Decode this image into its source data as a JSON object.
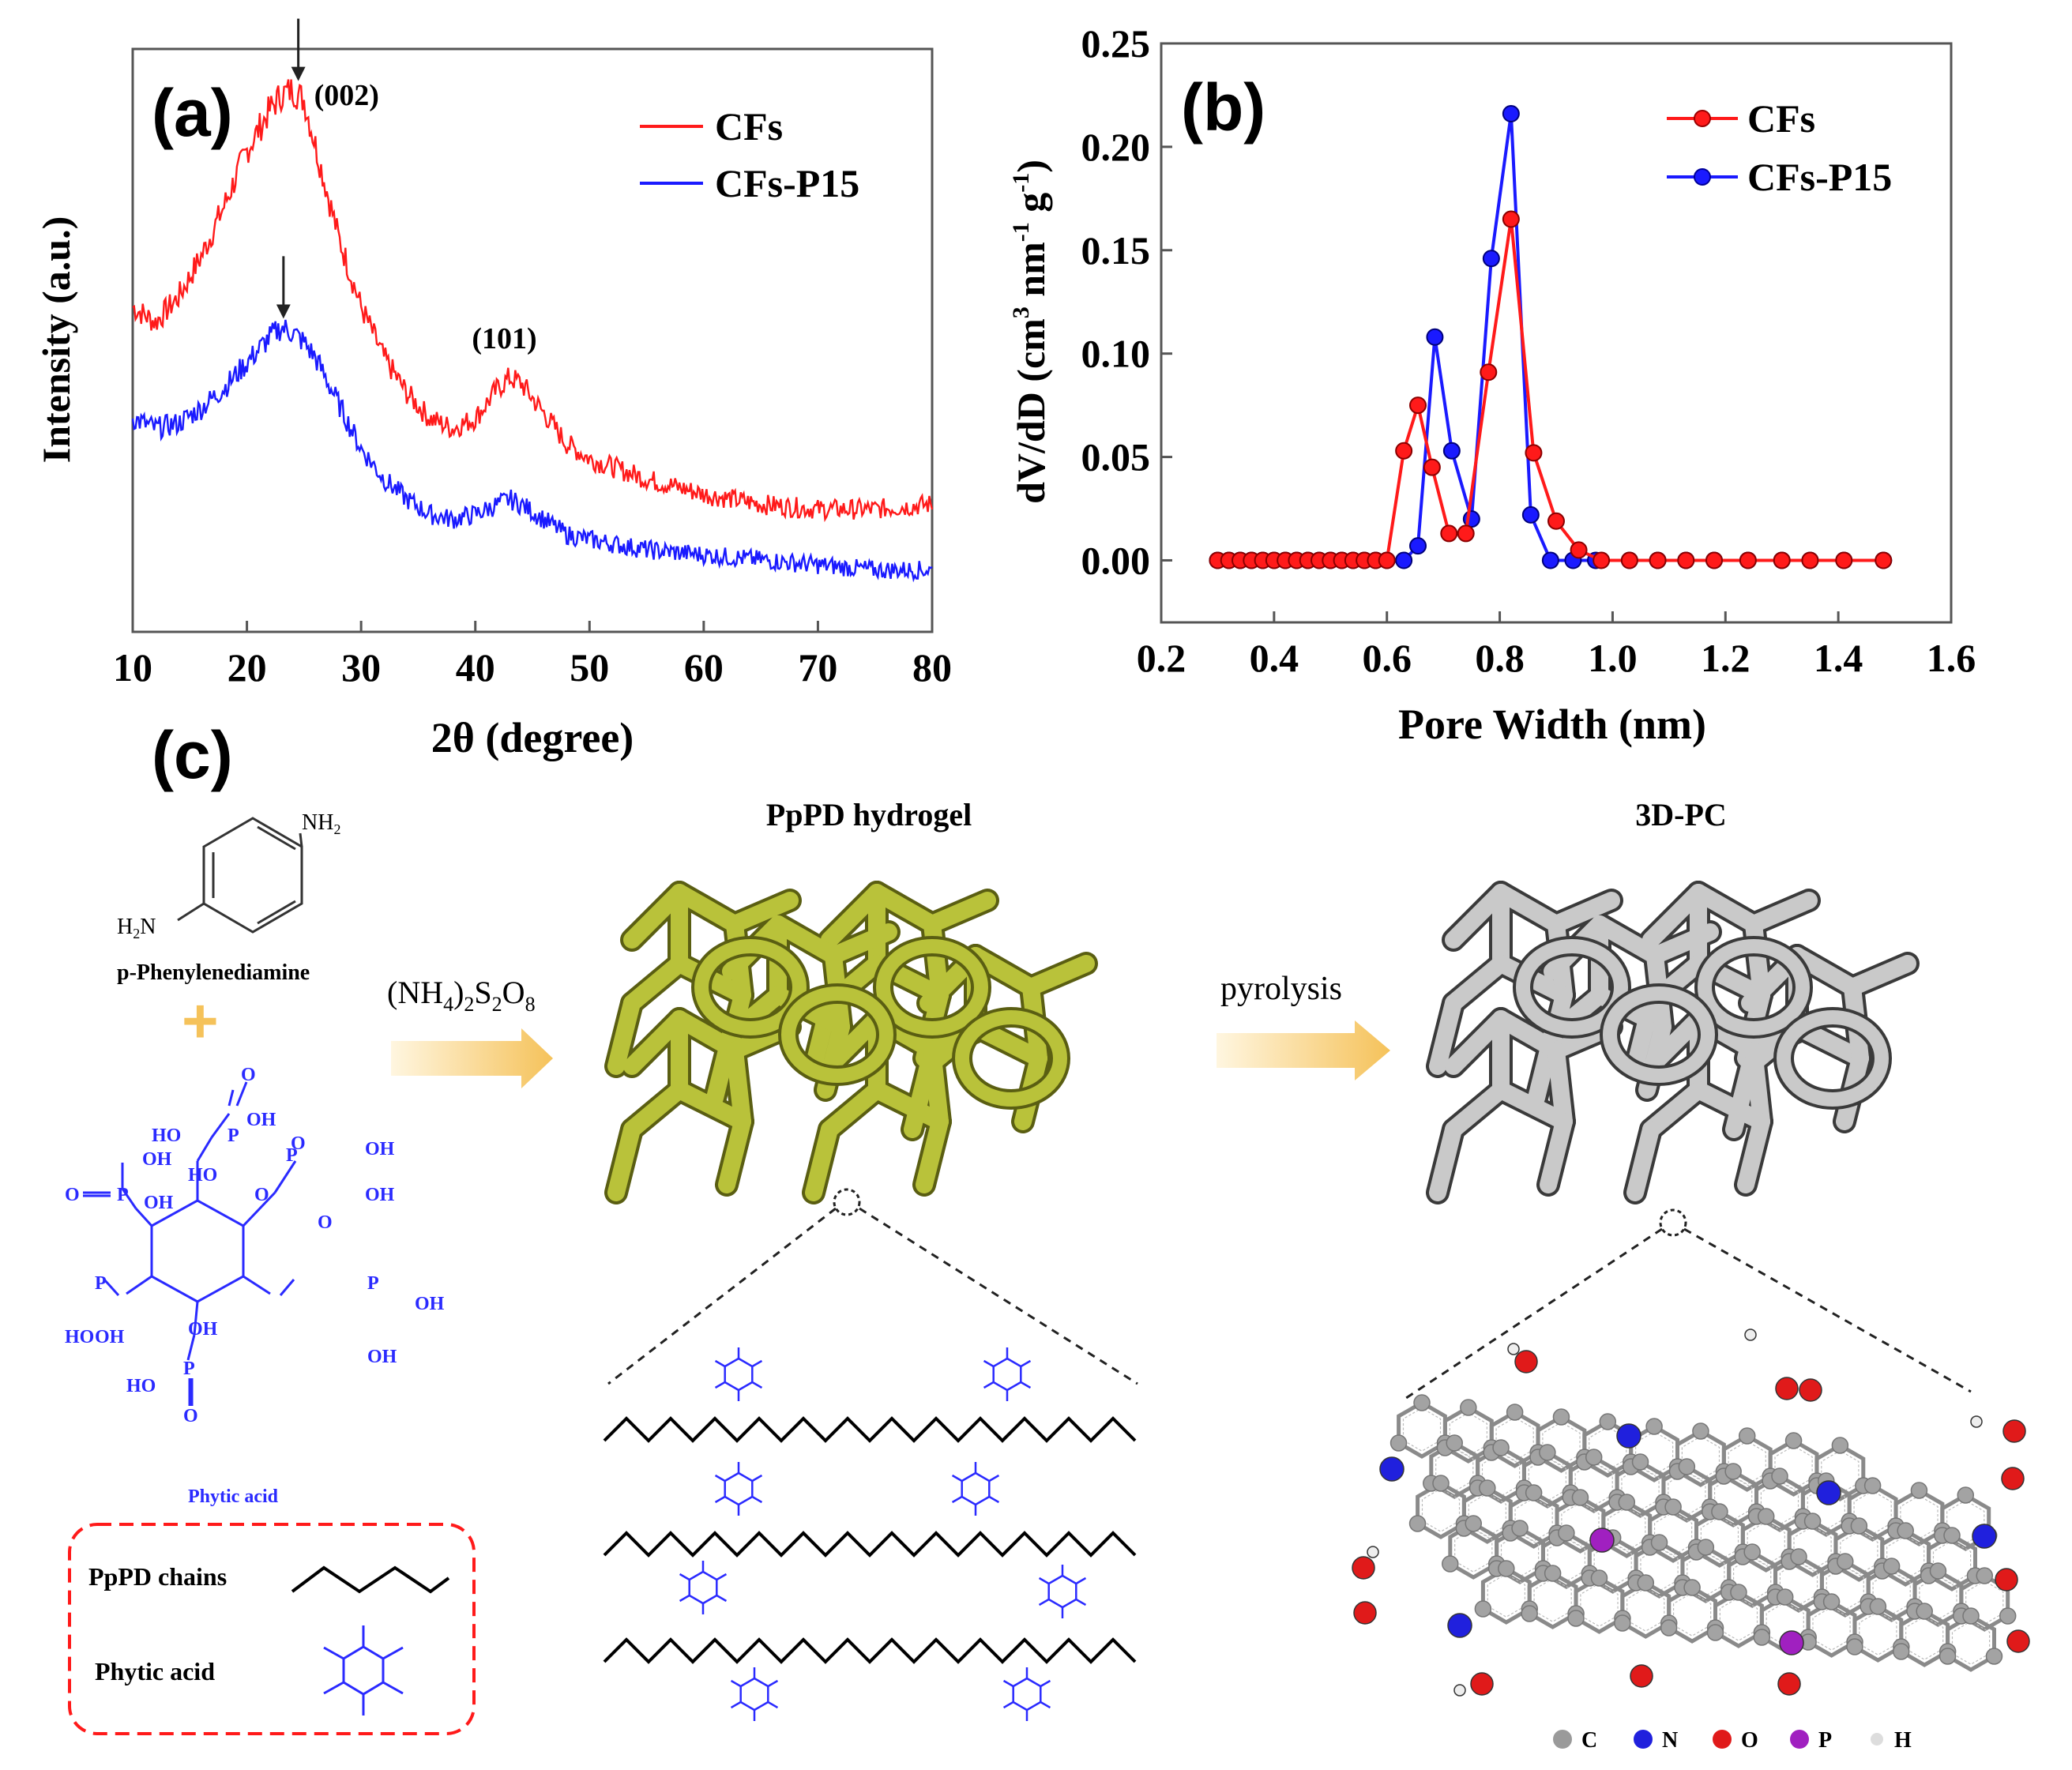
{
  "panel_labels": {
    "a": "(a)",
    "b": "(b)",
    "c": "(c)"
  },
  "colors": {
    "cfs": "#ff1a1a",
    "cfs_p15": "#1a1aff",
    "frame": "#555555",
    "arrow": "#f5c25a",
    "green": "#b9c23a",
    "grey": "#9a9a9a",
    "acid": "#2a2aff"
  },
  "chart_data": [
    {
      "type": "line",
      "panel": "(a)",
      "xlabel": "2θ (degree)",
      "ylabel": "Intensity (a.u.)",
      "xlim": [
        10,
        80
      ],
      "xticks": [
        10,
        20,
        30,
        40,
        50,
        60,
        70,
        80
      ],
      "y_ticks_shown": false,
      "legend_position": "top-right",
      "annotations": [
        {
          "text": "(002)",
          "x": 24.5,
          "series": "CFs"
        },
        {
          "text": "(101)",
          "x": 43.5,
          "series": "CFs"
        }
      ],
      "series": [
        {
          "name": "CFs",
          "color": "#ff1a1a",
          "x": [
            10,
            12,
            14,
            16,
            18,
            20,
            22,
            23,
            24,
            25,
            26,
            28,
            30,
            32,
            34,
            36,
            38,
            40,
            42,
            43,
            44,
            46,
            48,
            50,
            55,
            60,
            65,
            70,
            75,
            80
          ],
          "y": [
            0.58,
            0.55,
            0.6,
            0.68,
            0.78,
            0.89,
            0.97,
            1.0,
            1.01,
            0.99,
            0.9,
            0.72,
            0.58,
            0.48,
            0.41,
            0.36,
            0.34,
            0.36,
            0.42,
            0.44,
            0.43,
            0.37,
            0.31,
            0.28,
            0.24,
            0.21,
            0.19,
            0.18,
            0.18,
            0.19
          ]
        },
        {
          "name": "CFs-P15",
          "color": "#1a1aff",
          "x": [
            10,
            12,
            14,
            16,
            18,
            20,
            22,
            23,
            24,
            25,
            26,
            28,
            30,
            32,
            34,
            36,
            38,
            40,
            42,
            43,
            44,
            46,
            48,
            50,
            55,
            60,
            65,
            70,
            75,
            80
          ],
          "y": [
            0.36,
            0.34,
            0.35,
            0.38,
            0.42,
            0.47,
            0.52,
            0.54,
            0.53,
            0.51,
            0.48,
            0.39,
            0.3,
            0.24,
            0.2,
            0.17,
            0.16,
            0.17,
            0.19,
            0.2,
            0.19,
            0.16,
            0.13,
            0.12,
            0.1,
            0.09,
            0.08,
            0.07,
            0.06,
            0.06
          ]
        }
      ]
    },
    {
      "type": "line",
      "panel": "(b)",
      "xlabel": "Pore Width (nm)",
      "ylabel_parts": {
        "main": "dV/dD (cm",
        "sup1": "3",
        "mid": " nm",
        "sup2": "-1",
        "mid2": " g",
        "sup3": "-1",
        "end": ")"
      },
      "xlim": [
        0.2,
        1.6
      ],
      "ylim": [
        -0.03,
        0.25
      ],
      "xticks": [
        0.2,
        0.4,
        0.6,
        0.8,
        1.0,
        1.2,
        1.4,
        1.6
      ],
      "xtick_labels": [
        "0.2",
        "0.4",
        "0.6",
        "0.8",
        "1.0",
        "1.2",
        "1.4",
        "1.6"
      ],
      "yticks": [
        0.0,
        0.05,
        0.1,
        0.15,
        0.2,
        0.25
      ],
      "ytick_labels": [
        "0.00",
        "0.05",
        "0.10",
        "0.15",
        "0.20",
        "0.25"
      ],
      "legend_position": "top-right",
      "markers": true,
      "series": [
        {
          "name": "CFs",
          "color": "#ff1a1a",
          "x": [
            0.3,
            0.32,
            0.34,
            0.36,
            0.38,
            0.4,
            0.42,
            0.44,
            0.46,
            0.48,
            0.5,
            0.52,
            0.54,
            0.56,
            0.58,
            0.6,
            0.63,
            0.655,
            0.68,
            0.71,
            0.74,
            0.78,
            0.82,
            0.86,
            0.9,
            0.94,
            0.98,
            1.03,
            1.08,
            1.13,
            1.18,
            1.24,
            1.3,
            1.35,
            1.41,
            1.48
          ],
          "y": [
            0,
            0,
            0,
            0,
            0,
            0,
            0,
            0,
            0,
            0,
            0,
            0,
            0,
            0,
            0,
            0,
            0.053,
            0.075,
            0.045,
            0.013,
            0.013,
            0.091,
            0.165,
            0.052,
            0.019,
            0.005,
            0,
            0,
            0,
            0,
            0,
            0,
            0,
            0,
            0,
            0
          ]
        },
        {
          "name": "CFs-P15",
          "color": "#1a1aff",
          "x": [
            0.3,
            0.32,
            0.34,
            0.36,
            0.38,
            0.4,
            0.42,
            0.44,
            0.46,
            0.48,
            0.5,
            0.52,
            0.54,
            0.56,
            0.58,
            0.6,
            0.63,
            0.655,
            0.685,
            0.715,
            0.75,
            0.785,
            0.82,
            0.855,
            0.89,
            0.93,
            0.97,
            1.03,
            1.08,
            1.13,
            1.18,
            1.24,
            1.3,
            1.35,
            1.41,
            1.48
          ],
          "y": [
            0,
            0,
            0,
            0,
            0,
            0,
            0,
            0,
            0,
            0,
            0,
            0,
            0,
            0,
            0,
            0,
            0,
            0.007,
            0.108,
            0.053,
            0.02,
            0.146,
            0.216,
            0.022,
            0,
            0,
            0,
            0,
            0,
            0,
            0,
            0,
            0,
            0,
            0,
            0
          ]
        }
      ]
    }
  ],
  "scheme": {
    "monomer_label": "p-Phenylenediamine",
    "nh2": "NH",
    "nh2_sub": "2",
    "h2n_prefix": "H",
    "h2n_sub": "2",
    "h2n_suffix": "N",
    "plus": "+",
    "phytic_label": "Phytic acid",
    "ho": "HO",
    "oh": "OH",
    "o": "O",
    "p": "P",
    "oxidant": {
      "a": "(NH",
      "b": "4",
      "c": ")",
      "d": "2",
      "e": "S",
      "f": "2",
      "g": "O",
      "h": "8"
    },
    "hydrogel_title": "PpPD hydrogel",
    "pyrolysis": "pyrolysis",
    "product_title": "3D-PC",
    "legend_chains": "PpPD chains",
    "legend_acid": "Phytic acid",
    "atom_legend": [
      "C",
      "N",
      "O",
      "P",
      "H"
    ]
  }
}
